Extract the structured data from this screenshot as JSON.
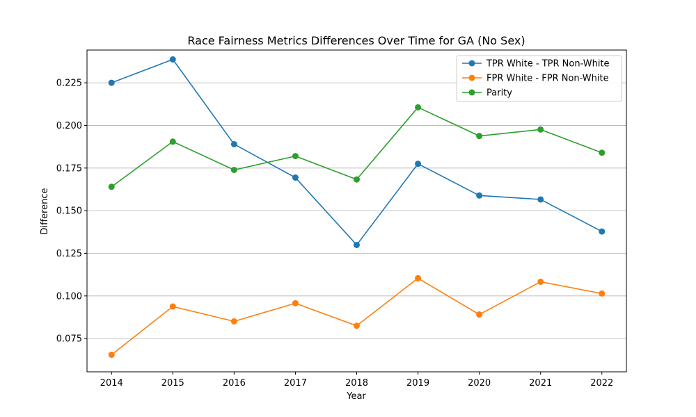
{
  "chart_data": {
    "type": "line",
    "title": "Race Fairness Metrics Differences Over Time for GA (No Sex)",
    "xlabel": "Year",
    "ylabel": "Difference",
    "x": [
      2014,
      2015,
      2016,
      2017,
      2018,
      2019,
      2020,
      2021,
      2022
    ],
    "x_ticks": [
      "2014",
      "2015",
      "2016",
      "2017",
      "2018",
      "2019",
      "2020",
      "2021",
      "2022"
    ],
    "xlim": [
      2013.6,
      2022.4
    ],
    "ylim": [
      0.0555,
      0.2442
    ],
    "y_ticks": [
      "0.075",
      "0.100",
      "0.125",
      "0.150",
      "0.175",
      "0.200",
      "0.225"
    ],
    "y_tick_values": [
      0.075,
      0.1,
      0.125,
      0.15,
      0.175,
      0.2,
      0.225
    ],
    "grid": "y-axis",
    "legend_position": "top-right",
    "series": [
      {
        "name": "TPR White - TPR Non-White",
        "color": "#1f77b4",
        "values": [
          0.225,
          0.2387,
          0.189,
          0.1694,
          0.1299,
          0.1775,
          0.1589,
          0.1566,
          0.1378
        ]
      },
      {
        "name": "FPR White - FPR Non-White",
        "color": "#ff7f0e",
        "values": [
          0.0655,
          0.0938,
          0.0851,
          0.0957,
          0.0825,
          0.1104,
          0.0891,
          0.1083,
          0.1014
        ]
      },
      {
        "name": "Parity",
        "color": "#2ca02c",
        "values": [
          0.164,
          0.1905,
          0.1739,
          0.182,
          0.1683,
          0.2106,
          0.1938,
          0.1976,
          0.184
        ]
      }
    ]
  }
}
